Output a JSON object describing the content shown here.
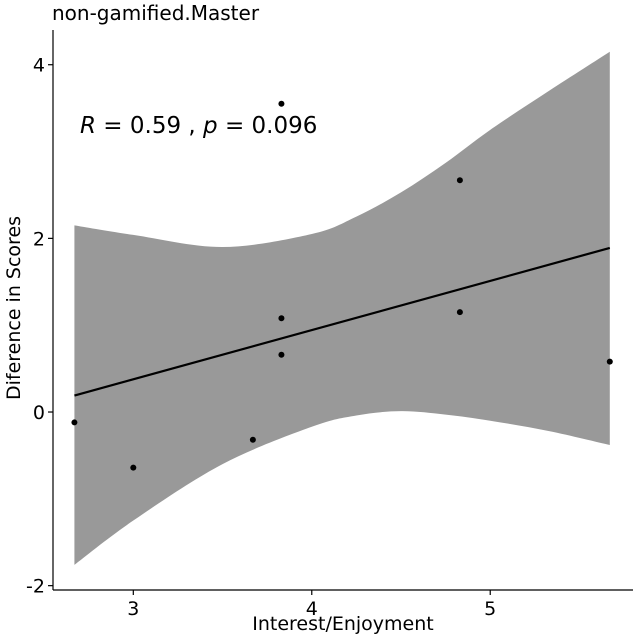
{
  "chart_data": {
    "type": "scatter",
    "title": "non-gamified.Master",
    "xlabel": "Interest/Enjoyment",
    "ylabel": "Diference in Scores",
    "xlim": [
      2.55,
      5.8
    ],
    "ylim": [
      -2.05,
      4.4
    ],
    "xticks": [
      3,
      4,
      5
    ],
    "yticks": [
      -2,
      0,
      2,
      4
    ],
    "grid": false,
    "annotation": {
      "r_symbol": "R",
      "r_text": " = 0.59 , ",
      "p_symbol": "p",
      "p_text": " = 0.096"
    },
    "points": [
      {
        "x": 2.67,
        "y": -0.12
      },
      {
        "x": 3.0,
        "y": -0.64
      },
      {
        "x": 3.67,
        "y": -0.32
      },
      {
        "x": 3.83,
        "y": 0.66
      },
      {
        "x": 3.83,
        "y": 1.08
      },
      {
        "x": 3.83,
        "y": 3.55
      },
      {
        "x": 4.83,
        "y": 2.67
      },
      {
        "x": 4.83,
        "y": 1.15
      },
      {
        "x": 5.67,
        "y": 0.58
      }
    ],
    "fit": {
      "x": [
        2.67,
        5.67
      ],
      "y": [
        0.19,
        1.89
      ]
    },
    "confidence_band": {
      "x": [
        2.67,
        3.0,
        3.5,
        4.0,
        4.25,
        4.5,
        4.75,
        5.0,
        5.33,
        5.67
      ],
      "upper": [
        2.15,
        2.04,
        1.9,
        2.05,
        2.25,
        2.53,
        2.87,
        3.25,
        3.7,
        4.15
      ],
      "lower": [
        -1.76,
        -1.25,
        -0.6,
        -0.17,
        -0.04,
        0.01,
        -0.03,
        -0.1,
        -0.22,
        -0.38
      ]
    },
    "colors": {
      "band": "#999999",
      "line": "#000000",
      "points": "#000000"
    }
  }
}
